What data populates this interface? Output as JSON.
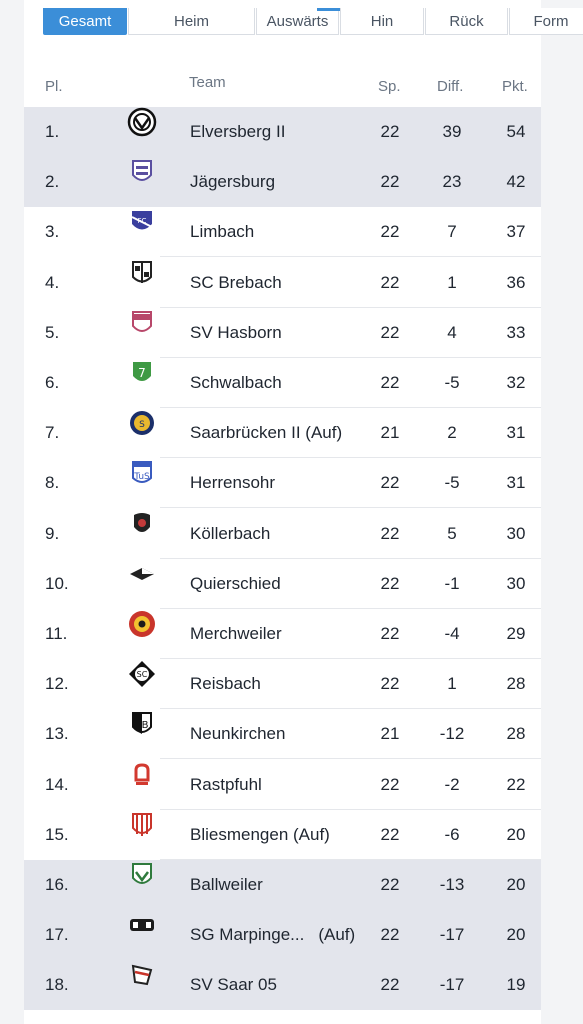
{
  "tabs": [
    {
      "label": "Gesamt",
      "active": true
    },
    {
      "label": "Heim",
      "active": false
    },
    {
      "label": "Auswärts",
      "active": false
    },
    {
      "label": "Hin",
      "active": false
    },
    {
      "label": "Rück",
      "active": false
    },
    {
      "label": "Form",
      "active": false
    }
  ],
  "table": {
    "headers": {
      "pos": "Pl.",
      "team": "Team",
      "games": "Sp.",
      "diff": "Diff.",
      "points": "Pkt."
    },
    "rows": [
      {
        "pos": "1.",
        "team": "Elversberg II",
        "suffix": "",
        "games": "22",
        "diff": "39",
        "points": "54",
        "crest": "elversberg-crest",
        "highlight": true
      },
      {
        "pos": "2.",
        "team": "Jägersburg",
        "suffix": "",
        "games": "22",
        "diff": "23",
        "points": "42",
        "crest": "jaegersburg-crest",
        "highlight": true
      },
      {
        "pos": "3.",
        "team": "Limbach",
        "suffix": "",
        "games": "22",
        "diff": "7",
        "points": "37",
        "crest": "limbach-crest",
        "highlight": false
      },
      {
        "pos": "4.",
        "team": "SC Brebach",
        "suffix": "",
        "games": "22",
        "diff": "1",
        "points": "36",
        "crest": "brebach-crest",
        "highlight": false
      },
      {
        "pos": "5.",
        "team": "SV Hasborn",
        "suffix": "",
        "games": "22",
        "diff": "4",
        "points": "33",
        "crest": "hasborn-crest",
        "highlight": false
      },
      {
        "pos": "6.",
        "team": "Schwalbach",
        "suffix": "",
        "games": "22",
        "diff": "-5",
        "points": "32",
        "crest": "schwalbach-crest",
        "highlight": false
      },
      {
        "pos": "7.",
        "team": "Saarbrücken II (Auf)",
        "suffix": "",
        "games": "21",
        "diff": "2",
        "points": "31",
        "crest": "saarbruecken-crest",
        "highlight": false
      },
      {
        "pos": "8.",
        "team": "Herrensohr",
        "suffix": "",
        "games": "22",
        "diff": "-5",
        "points": "31",
        "crest": "herrensohr-crest",
        "highlight": false
      },
      {
        "pos": "9.",
        "team": "Köllerbach",
        "suffix": "",
        "games": "22",
        "diff": "5",
        "points": "30",
        "crest": "koellerbach-crest",
        "highlight": false
      },
      {
        "pos": "10.",
        "team": "Quierschied",
        "suffix": "",
        "games": "22",
        "diff": "-1",
        "points": "30",
        "crest": "quierschied-crest",
        "highlight": false
      },
      {
        "pos": "11.",
        "team": "Merchweiler",
        "suffix": "",
        "games": "22",
        "diff": "-4",
        "points": "29",
        "crest": "merchweiler-crest",
        "highlight": false
      },
      {
        "pos": "12.",
        "team": "Reisbach",
        "suffix": "",
        "games": "22",
        "diff": "1",
        "points": "28",
        "crest": "reisbach-crest",
        "highlight": false
      },
      {
        "pos": "13.",
        "team": "Neunkirchen",
        "suffix": "",
        "games": "21",
        "diff": "-12",
        "points": "28",
        "crest": "neunkirchen-crest",
        "highlight": false
      },
      {
        "pos": "14.",
        "team": "Rastpfuhl",
        "suffix": "",
        "games": "22",
        "diff": "-2",
        "points": "22",
        "crest": "rastpfuhl-crest",
        "highlight": false
      },
      {
        "pos": "15.",
        "team": "Bliesmengen (Auf)",
        "suffix": "",
        "games": "22",
        "diff": "-6",
        "points": "20",
        "crest": "bliesmengen-crest",
        "highlight": false
      },
      {
        "pos": "16.",
        "team": "Ballweiler",
        "suffix": "",
        "games": "22",
        "diff": "-13",
        "points": "20",
        "crest": "ballweiler-crest",
        "highlight": true
      },
      {
        "pos": "17.",
        "team": "SG Marpinge...",
        "suffix": "(Auf)",
        "games": "22",
        "diff": "-17",
        "points": "20",
        "crest": "marpingen-crest",
        "highlight": true
      },
      {
        "pos": "18.",
        "team": "SV Saar 05",
        "suffix": "",
        "games": "22",
        "diff": "-17",
        "points": "19",
        "crest": "saar05-crest",
        "highlight": true
      }
    ]
  },
  "colors": {
    "accent": "#3b8ed8",
    "highlight_row": "#e3e5ec"
  }
}
